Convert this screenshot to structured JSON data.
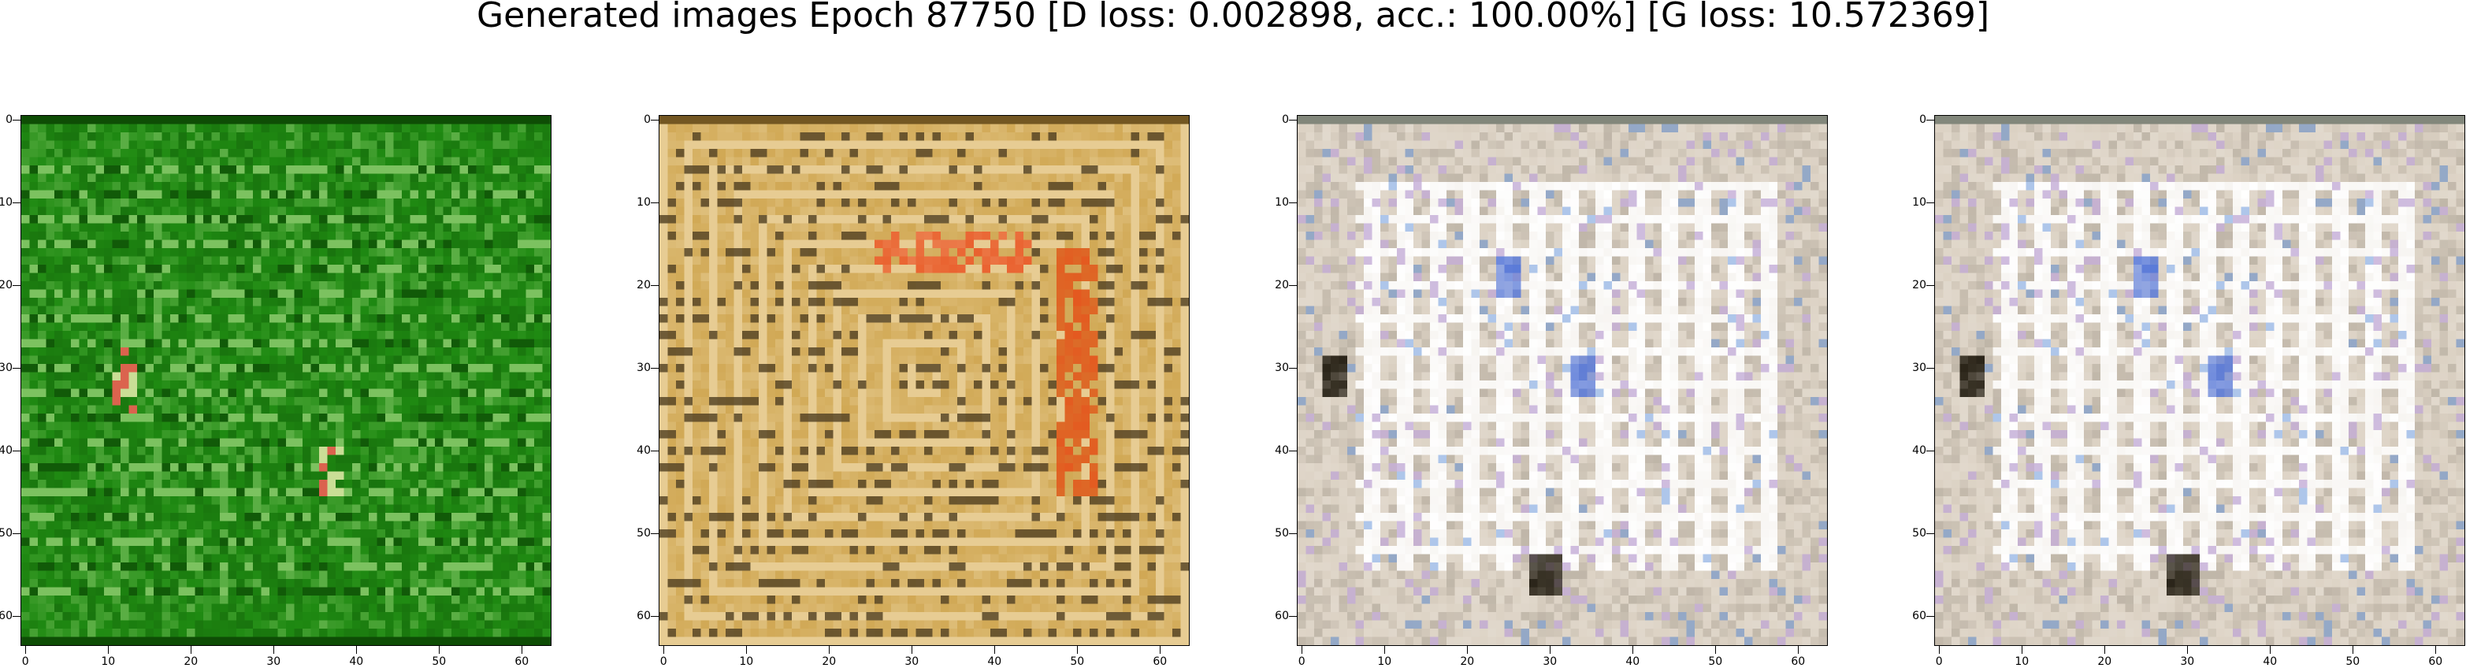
{
  "figure": {
    "title": "Generated images Epoch 87750 [D loss: 0.002898, acc.: 100.00%] [G loss: 10.572369]",
    "image_size": 64,
    "x_ticks": [
      "0",
      "10",
      "20",
      "30",
      "40",
      "50",
      "60"
    ],
    "y_ticks": [
      "0",
      "10",
      "20",
      "30",
      "40",
      "50",
      "60"
    ],
    "panels": [
      {
        "id": "panel-1",
        "base": "#1f8a12",
        "accent": "#c8f0a0",
        "dark": "#063300",
        "spot": "#e0403a",
        "pattern": "grid-green"
      },
      {
        "id": "panel-2",
        "base": "#c89a3c",
        "accent": "#f4e2b8",
        "dark": "#3a2a10",
        "spot": "#e8501c",
        "pattern": "frames"
      },
      {
        "id": "panel-3",
        "base": "#dcd2c4",
        "accent": "#ffffff",
        "dark": "#2a2418",
        "spot": "#5a7ad8",
        "pattern": "bars"
      },
      {
        "id": "panel-4",
        "base": "#dcd2c4",
        "accent": "#ffffff",
        "dark": "#2a2418",
        "spot": "#5a7ad8",
        "pattern": "bars"
      }
    ]
  }
}
